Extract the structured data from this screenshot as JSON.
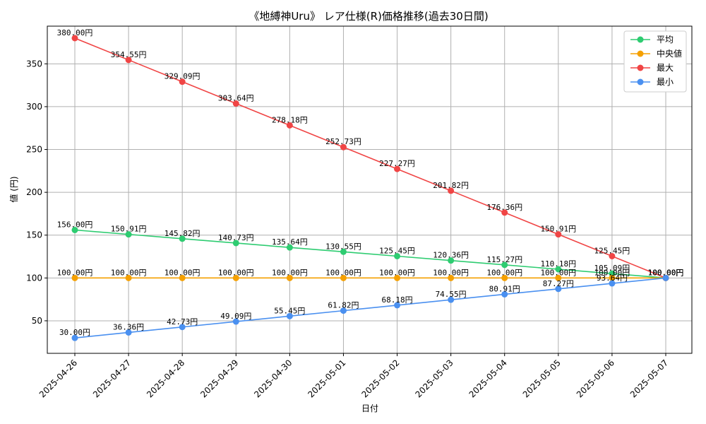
{
  "chart_data": {
    "type": "line",
    "title": "《地縛神Uru》 レア仕様(R)価格推移(過去30日間)",
    "xlabel": "日付",
    "ylabel": "値 (円)",
    "ylim": [
      12,
      394
    ],
    "yticks": [
      50,
      100,
      150,
      200,
      250,
      300,
      350
    ],
    "grid": true,
    "legend_position": "top-right",
    "label_suffix": "円",
    "x": [
      "2025-04-26",
      "2025-04-27",
      "2025-04-28",
      "2025-04-29",
      "2025-04-30",
      "2025-05-01",
      "2025-05-02",
      "2025-05-03",
      "2025-05-04",
      "2025-05-05",
      "2025-05-06",
      "2025-05-07"
    ],
    "series": [
      {
        "name": "平均",
        "color": "#2ecc71",
        "values": [
          156.0,
          150.91,
          145.82,
          140.73,
          135.64,
          130.55,
          125.45,
          120.36,
          115.27,
          110.18,
          105.09,
          100.0
        ]
      },
      {
        "name": "中央値",
        "color": "#f5a000",
        "values": [
          100.0,
          100.0,
          100.0,
          100.0,
          100.0,
          100.0,
          100.0,
          100.0,
          100.0,
          100.0,
          100.0,
          100.0
        ]
      },
      {
        "name": "最大",
        "color": "#f04545",
        "values": [
          380.0,
          354.55,
          329.09,
          303.64,
          278.18,
          252.73,
          227.27,
          201.82,
          176.36,
          150.91,
          125.45,
          100.0
        ]
      },
      {
        "name": "最小",
        "color": "#4a90f0",
        "values": [
          30.0,
          36.36,
          42.73,
          49.09,
          55.45,
          61.82,
          68.18,
          74.55,
          80.91,
          87.27,
          93.64,
          100.0
        ]
      }
    ]
  }
}
